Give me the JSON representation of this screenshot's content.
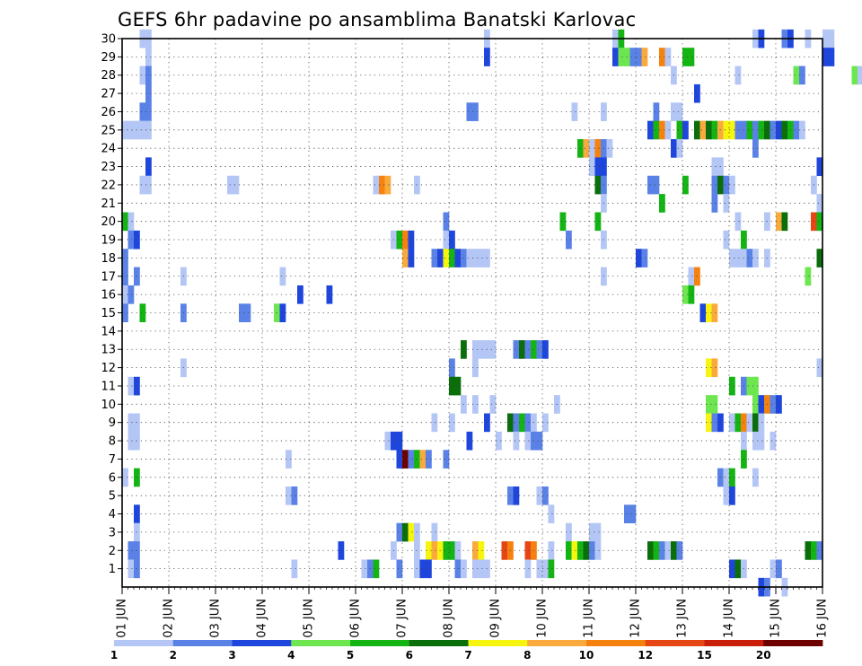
{
  "chart_data": {
    "type": "heatmap",
    "title": "GEFS 6hr padavine po ansamblima Banatski Karlovac",
    "xlabel": "",
    "ylabel": "",
    "x_ticks": [
      "01 JUN",
      "02 JUN",
      "03 JUN",
      "04 JUN",
      "05 JUN",
      "06 JUN",
      "07 JUN",
      "08 JUN",
      "09 JUN",
      "10 JUN",
      "11 JUN",
      "12 JUN",
      "13 JUN",
      "14 JUN",
      "15 JUN",
      "16 JUN"
    ],
    "y_ticks": [
      "1",
      "2",
      "3",
      "4",
      "5",
      "6",
      "7",
      "8",
      "9",
      "10",
      "11",
      "12",
      "13",
      "14",
      "15",
      "16",
      "17",
      "18",
      "19",
      "20",
      "21",
      "22",
      "23",
      "24",
      "25",
      "26",
      "27",
      "28",
      "29",
      "30"
    ],
    "xlim": [
      "01 JUN 00Z",
      "16 JUN 00Z"
    ],
    "ylim": [
      0,
      30
    ],
    "x_step": "6 hours",
    "grid": true,
    "colorbar": {
      "position": "bottom",
      "levels": [
        "1",
        "2",
        "3",
        "4",
        "5",
        "6",
        "7",
        "8",
        "10",
        "12",
        "15",
        "20"
      ],
      "colors": [
        "#b4c6f5",
        "#5a82e6",
        "#1f46dc",
        "#6ee650",
        "#14b414",
        "#0a6e0a",
        "#f5f50f",
        "#faaa3c",
        "#f5820f",
        "#e64614",
        "#c81e0a",
        "#6e0000"
      ]
    },
    "cells": [
      [
        3,
        30,
        1
      ],
      [
        4,
        30,
        1
      ],
      [
        62,
        30,
        1
      ],
      [
        84,
        30,
        1
      ],
      [
        85,
        30,
        5
      ],
      [
        108,
        30,
        1
      ],
      [
        109,
        30,
        3
      ],
      [
        113,
        30,
        2
      ],
      [
        114,
        30,
        3
      ],
      [
        117,
        30,
        1
      ],
      [
        120,
        30,
        1
      ],
      [
        121,
        30,
        1
      ],
      [
        4,
        29,
        1
      ],
      [
        62,
        29,
        3
      ],
      [
        84,
        29,
        3
      ],
      [
        85,
        29,
        4
      ],
      [
        86,
        29,
        4
      ],
      [
        87,
        29,
        2
      ],
      [
        88,
        29,
        2
      ],
      [
        89,
        29,
        8
      ],
      [
        92,
        29,
        9
      ],
      [
        93,
        29,
        1
      ],
      [
        96,
        29,
        5
      ],
      [
        97,
        29,
        5
      ],
      [
        120,
        29,
        3
      ],
      [
        121,
        29,
        3
      ],
      [
        3,
        28,
        1
      ],
      [
        4,
        28,
        2
      ],
      [
        94,
        28,
        1
      ],
      [
        105,
        28,
        1
      ],
      [
        115,
        28,
        4
      ],
      [
        116,
        28,
        2
      ],
      [
        125,
        28,
        4
      ],
      [
        126,
        28,
        1
      ],
      [
        4,
        27,
        2
      ],
      [
        98,
        27,
        3
      ],
      [
        3,
        26,
        2
      ],
      [
        4,
        26,
        2
      ],
      [
        59,
        26,
        2
      ],
      [
        60,
        26,
        2
      ],
      [
        77,
        26,
        1
      ],
      [
        82,
        26,
        1
      ],
      [
        91,
        26,
        2
      ],
      [
        94,
        26,
        1
      ],
      [
        95,
        26,
        1
      ],
      [
        0,
        25,
        1
      ],
      [
        1,
        25,
        1
      ],
      [
        2,
        25,
        1
      ],
      [
        3,
        25,
        1
      ],
      [
        4,
        25,
        1
      ],
      [
        90,
        25,
        3
      ],
      [
        91,
        25,
        5
      ],
      [
        92,
        25,
        9
      ],
      [
        93,
        25,
        1
      ],
      [
        95,
        25,
        5
      ],
      [
        96,
        25,
        3
      ],
      [
        98,
        25,
        6
      ],
      [
        99,
        25,
        8
      ],
      [
        100,
        25,
        6
      ],
      [
        101,
        25,
        5
      ],
      [
        102,
        25,
        8
      ],
      [
        103,
        25,
        7
      ],
      [
        104,
        25,
        7
      ],
      [
        105,
        25,
        2
      ],
      [
        106,
        25,
        2
      ],
      [
        107,
        25,
        5
      ],
      [
        108,
        25,
        2
      ],
      [
        109,
        25,
        5
      ],
      [
        110,
        25,
        6
      ],
      [
        111,
        25,
        2
      ],
      [
        112,
        25,
        3
      ],
      [
        113,
        25,
        6
      ],
      [
        114,
        25,
        5
      ],
      [
        115,
        25,
        2
      ],
      [
        116,
        25,
        1
      ],
      [
        78,
        24,
        5
      ],
      [
        79,
        24,
        8
      ],
      [
        80,
        24,
        1
      ],
      [
        81,
        24,
        9
      ],
      [
        82,
        24,
        2
      ],
      [
        83,
        24,
        1
      ],
      [
        94,
        24,
        3
      ],
      [
        95,
        24,
        1
      ],
      [
        108,
        24,
        2
      ],
      [
        4,
        23,
        3
      ],
      [
        80,
        23,
        1
      ],
      [
        81,
        23,
        3
      ],
      [
        82,
        23,
        3
      ],
      [
        101,
        23,
        1
      ],
      [
        102,
        23,
        1
      ],
      [
        119,
        23,
        3
      ],
      [
        3,
        22,
        1
      ],
      [
        4,
        22,
        1
      ],
      [
        18,
        22,
        1
      ],
      [
        19,
        22,
        1
      ],
      [
        43,
        22,
        1
      ],
      [
        44,
        22,
        9
      ],
      [
        45,
        22,
        8
      ],
      [
        50,
        22,
        1
      ],
      [
        81,
        22,
        6
      ],
      [
        82,
        22,
        2
      ],
      [
        90,
        22,
        2
      ],
      [
        91,
        22,
        2
      ],
      [
        96,
        22,
        5
      ],
      [
        101,
        22,
        2
      ],
      [
        102,
        22,
        6
      ],
      [
        103,
        22,
        2
      ],
      [
        104,
        22,
        1
      ],
      [
        118,
        22,
        1
      ],
      [
        82,
        21,
        1
      ],
      [
        92,
        21,
        5
      ],
      [
        101,
        21,
        2
      ],
      [
        103,
        21,
        1
      ],
      [
        119,
        21,
        1
      ],
      [
        0,
        20,
        5
      ],
      [
        1,
        20,
        1
      ],
      [
        55,
        20,
        2
      ],
      [
        75,
        20,
        5
      ],
      [
        81,
        20,
        5
      ],
      [
        105,
        20,
        1
      ],
      [
        110,
        20,
        1
      ],
      [
        112,
        20,
        8
      ],
      [
        113,
        20,
        6
      ],
      [
        118,
        20,
        10
      ],
      [
        119,
        20,
        5
      ],
      [
        1,
        19,
        2
      ],
      [
        2,
        19,
        3
      ],
      [
        46,
        19,
        1
      ],
      [
        47,
        19,
        5
      ],
      [
        48,
        19,
        9
      ],
      [
        49,
        19,
        3
      ],
      [
        55,
        19,
        1
      ],
      [
        56,
        19,
        3
      ],
      [
        76,
        19,
        2
      ],
      [
        82,
        19,
        1
      ],
      [
        103,
        19,
        1
      ],
      [
        106,
        19,
        5
      ],
      [
        0,
        18,
        2
      ],
      [
        48,
        18,
        8
      ],
      [
        49,
        18,
        3
      ],
      [
        53,
        18,
        2
      ],
      [
        54,
        18,
        3
      ],
      [
        55,
        18,
        7
      ],
      [
        56,
        18,
        5
      ],
      [
        57,
        18,
        3
      ],
      [
        58,
        18,
        2
      ],
      [
        59,
        18,
        1
      ],
      [
        60,
        18,
        1
      ],
      [
        61,
        18,
        1
      ],
      [
        62,
        18,
        1
      ],
      [
        88,
        18,
        3
      ],
      [
        89,
        18,
        2
      ],
      [
        104,
        18,
        1
      ],
      [
        105,
        18,
        1
      ],
      [
        106,
        18,
        1
      ],
      [
        107,
        18,
        2
      ],
      [
        108,
        18,
        1
      ],
      [
        110,
        18,
        1
      ],
      [
        119,
        18,
        6
      ],
      [
        0,
        17,
        2
      ],
      [
        2,
        17,
        2
      ],
      [
        10,
        17,
        1
      ],
      [
        27,
        17,
        1
      ],
      [
        82,
        17,
        1
      ],
      [
        97,
        17,
        1
      ],
      [
        98,
        17,
        9
      ],
      [
        117,
        17,
        4
      ],
      [
        0,
        16,
        1
      ],
      [
        1,
        16,
        2
      ],
      [
        30,
        16,
        3
      ],
      [
        35,
        16,
        3
      ],
      [
        96,
        16,
        4
      ],
      [
        97,
        16,
        5
      ],
      [
        0,
        15,
        2
      ],
      [
        3,
        15,
        5
      ],
      [
        10,
        15,
        2
      ],
      [
        20,
        15,
        2
      ],
      [
        21,
        15,
        2
      ],
      [
        26,
        15,
        4
      ],
      [
        27,
        15,
        3
      ],
      [
        99,
        15,
        3
      ],
      [
        100,
        15,
        7
      ],
      [
        101,
        15,
        8
      ],
      [
        58,
        13,
        6
      ],
      [
        60,
        13,
        1
      ],
      [
        61,
        13,
        1
      ],
      [
        62,
        13,
        1
      ],
      [
        63,
        13,
        1
      ],
      [
        67,
        13,
        2
      ],
      [
        68,
        13,
        6
      ],
      [
        69,
        13,
        2
      ],
      [
        70,
        13,
        5
      ],
      [
        71,
        13,
        2
      ],
      [
        72,
        13,
        3
      ],
      [
        10,
        12,
        1
      ],
      [
        56,
        12,
        2
      ],
      [
        60,
        12,
        1
      ],
      [
        100,
        12,
        7
      ],
      [
        101,
        12,
        8
      ],
      [
        119,
        12,
        1
      ],
      [
        1,
        11,
        1
      ],
      [
        2,
        11,
        3
      ],
      [
        56,
        11,
        6
      ],
      [
        57,
        11,
        6
      ],
      [
        104,
        11,
        5
      ],
      [
        106,
        11,
        2
      ],
      [
        107,
        11,
        4
      ],
      [
        108,
        11,
        4
      ],
      [
        58,
        10,
        1
      ],
      [
        60,
        10,
        1
      ],
      [
        63,
        10,
        1
      ],
      [
        74,
        10,
        1
      ],
      [
        100,
        10,
        4
      ],
      [
        101,
        10,
        4
      ],
      [
        108,
        10,
        4
      ],
      [
        109,
        10,
        3
      ],
      [
        110,
        10,
        9
      ],
      [
        111,
        10,
        2
      ],
      [
        112,
        10,
        3
      ],
      [
        1,
        9,
        1
      ],
      [
        2,
        9,
        1
      ],
      [
        53,
        9,
        1
      ],
      [
        56,
        9,
        1
      ],
      [
        62,
        9,
        3
      ],
      [
        66,
        9,
        6
      ],
      [
        67,
        9,
        2
      ],
      [
        68,
        9,
        5
      ],
      [
        69,
        9,
        2
      ],
      [
        70,
        9,
        1
      ],
      [
        72,
        9,
        1
      ],
      [
        100,
        9,
        7
      ],
      [
        101,
        9,
        2
      ],
      [
        102,
        9,
        3
      ],
      [
        104,
        9,
        1
      ],
      [
        105,
        9,
        5
      ],
      [
        106,
        9,
        9
      ],
      [
        107,
        9,
        1
      ],
      [
        108,
        9,
        6
      ],
      [
        109,
        9,
        1
      ],
      [
        1,
        8,
        1
      ],
      [
        2,
        8,
        1
      ],
      [
        45,
        8,
        1
      ],
      [
        46,
        8,
        3
      ],
      [
        47,
        8,
        3
      ],
      [
        59,
        8,
        3
      ],
      [
        64,
        8,
        1
      ],
      [
        67,
        8,
        1
      ],
      [
        69,
        8,
        1
      ],
      [
        70,
        8,
        2
      ],
      [
        71,
        8,
        2
      ],
      [
        106,
        8,
        1
      ],
      [
        108,
        8,
        1
      ],
      [
        109,
        8,
        1
      ],
      [
        111,
        8,
        1
      ],
      [
        28,
        7,
        1
      ],
      [
        47,
        7,
        3
      ],
      [
        48,
        7,
        12
      ],
      [
        49,
        7,
        2
      ],
      [
        50,
        7,
        5
      ],
      [
        51,
        7,
        8
      ],
      [
        52,
        7,
        2
      ],
      [
        55,
        7,
        2
      ],
      [
        106,
        7,
        5
      ],
      [
        0,
        6,
        1
      ],
      [
        2,
        6,
        5
      ],
      [
        102,
        6,
        2
      ],
      [
        103,
        6,
        1
      ],
      [
        104,
        6,
        5
      ],
      [
        108,
        6,
        1
      ],
      [
        28,
        5,
        1
      ],
      [
        29,
        5,
        2
      ],
      [
        66,
        5,
        2
      ],
      [
        67,
        5,
        3
      ],
      [
        71,
        5,
        1
      ],
      [
        72,
        5,
        2
      ],
      [
        103,
        5,
        1
      ],
      [
        104,
        5,
        3
      ],
      [
        2,
        4,
        3
      ],
      [
        73,
        4,
        1
      ],
      [
        86,
        4,
        2
      ],
      [
        87,
        4,
        2
      ],
      [
        2,
        3,
        1
      ],
      [
        47,
        3,
        2
      ],
      [
        48,
        3,
        6
      ],
      [
        49,
        3,
        7
      ],
      [
        50,
        3,
        1
      ],
      [
        53,
        3,
        1
      ],
      [
        76,
        3,
        1
      ],
      [
        80,
        3,
        1
      ],
      [
        81,
        3,
        1
      ],
      [
        1,
        2,
        2
      ],
      [
        2,
        2,
        2
      ],
      [
        37,
        2,
        3
      ],
      [
        46,
        2,
        1
      ],
      [
        50,
        2,
        1
      ],
      [
        52,
        2,
        7
      ],
      [
        53,
        2,
        8
      ],
      [
        54,
        2,
        7
      ],
      [
        55,
        2,
        5
      ],
      [
        56,
        2,
        5
      ],
      [
        57,
        2,
        1
      ],
      [
        60,
        2,
        8
      ],
      [
        61,
        2,
        7
      ],
      [
        65,
        2,
        10
      ],
      [
        66,
        2,
        9
      ],
      [
        69,
        2,
        10
      ],
      [
        70,
        2,
        9
      ],
      [
        73,
        2,
        1
      ],
      [
        76,
        2,
        5
      ],
      [
        77,
        2,
        7
      ],
      [
        78,
        2,
        5
      ],
      [
        79,
        2,
        6
      ],
      [
        80,
        2,
        2
      ],
      [
        81,
        2,
        1
      ],
      [
        90,
        2,
        6
      ],
      [
        91,
        2,
        5
      ],
      [
        92,
        2,
        2
      ],
      [
        93,
        2,
        1
      ],
      [
        94,
        2,
        6
      ],
      [
        95,
        2,
        2
      ],
      [
        117,
        2,
        6
      ],
      [
        118,
        2,
        5
      ],
      [
        119,
        2,
        2
      ],
      [
        1,
        1,
        1
      ],
      [
        2,
        1,
        2
      ],
      [
        29,
        1,
        1
      ],
      [
        41,
        1,
        1
      ],
      [
        42,
        1,
        2
      ],
      [
        43,
        1,
        5
      ],
      [
        47,
        1,
        2
      ],
      [
        50,
        1,
        1
      ],
      [
        51,
        1,
        3
      ],
      [
        52,
        1,
        3
      ],
      [
        57,
        1,
        2
      ],
      [
        58,
        1,
        1
      ],
      [
        60,
        1,
        1
      ],
      [
        61,
        1,
        1
      ],
      [
        62,
        1,
        1
      ],
      [
        69,
        1,
        1
      ],
      [
        71,
        1,
        1
      ],
      [
        72,
        1,
        1
      ],
      [
        73,
        1,
        5
      ],
      [
        104,
        1,
        3
      ],
      [
        105,
        1,
        6
      ],
      [
        106,
        1,
        1
      ],
      [
        111,
        1,
        1
      ],
      [
        112,
        1,
        2
      ],
      [
        109,
        0,
        3
      ],
      [
        110,
        0,
        2
      ],
      [
        113,
        0,
        1
      ]
    ]
  }
}
